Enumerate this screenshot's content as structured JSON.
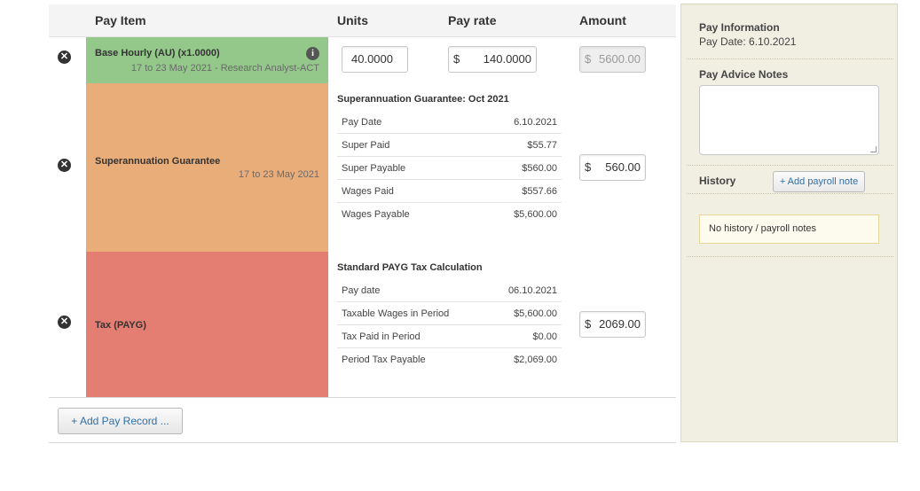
{
  "table": {
    "headers": {
      "pay_item": "Pay Item",
      "units": "Units",
      "pay_rate": "Pay rate",
      "amount": "Amount"
    },
    "rows": [
      {
        "name": "Base Hourly (AU) (x1.0000)",
        "sub": "17 to 23 May 2021 - Research Analyst-ACT",
        "units": "40.0000",
        "rate_currency": "$",
        "rate": "140.0000",
        "amount_currency": "$",
        "amount": "5600.00",
        "color": "#93c88a"
      },
      {
        "name": "Superannuation Guarantee",
        "sub": "17 to 23 May 2021",
        "detail_title": "Superannuation Guarantee: Oct 2021",
        "details": [
          {
            "k": "Pay Date",
            "v": "6.10.2021"
          },
          {
            "k": "Super Paid",
            "v": "$55.77"
          },
          {
            "k": "Super Payable",
            "v": "$560.00"
          },
          {
            "k": "Wages Paid",
            "v": "$557.66"
          },
          {
            "k": "Wages Payable",
            "v": "$5,600.00"
          }
        ],
        "amount_currency": "$",
        "amount": "560.00",
        "color": "#e9ad7a"
      },
      {
        "name": "Tax (PAYG)",
        "detail_title": "Standard PAYG Tax Calculation",
        "details": [
          {
            "k": "Pay date",
            "v": "06.10.2021"
          },
          {
            "k": "Taxable Wages in Period",
            "v": "$5,600.00"
          },
          {
            "k": "Tax Paid in Period",
            "v": "$0.00"
          },
          {
            "k": "Period Tax Payable",
            "v": "$2,069.00"
          }
        ],
        "amount_currency": "$",
        "amount": "2069.00",
        "color": "#e47e72"
      }
    ],
    "add_pay_record": "+ Add Pay Record ..."
  },
  "sidebar": {
    "pay_info_title": "Pay Information",
    "pay_date": "Pay Date: 6.10.2021",
    "notes_label": "Pay Advice Notes",
    "notes_value": "",
    "history_label": "History",
    "add_note_button": "+ Add payroll note",
    "no_history": "No history / payroll notes"
  },
  "icons": {
    "remove": "close-circle-icon",
    "info": "info-icon"
  }
}
